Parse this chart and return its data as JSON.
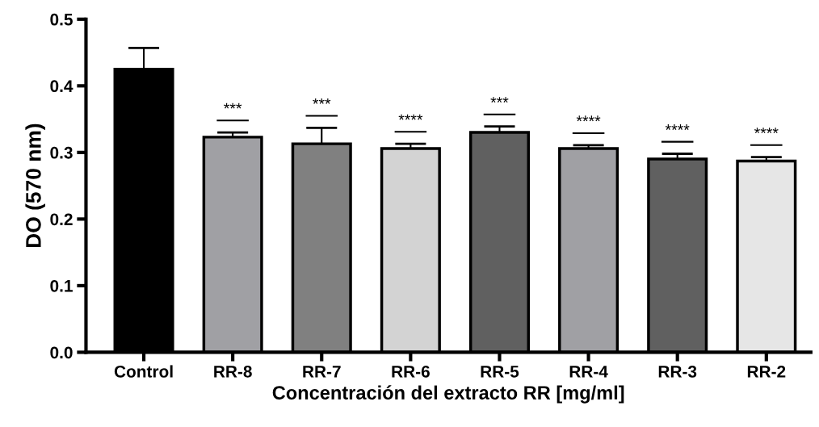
{
  "chart_data": {
    "type": "bar",
    "xlabel": "Concentración del extracto RR [mg/ml]",
    "ylabel": "DO (570 nm)",
    "categories": [
      "Control",
      "RR-8",
      "RR-7",
      "RR-6",
      "RR-5",
      "RR-4",
      "RR-3",
      "RR-2"
    ],
    "values": [
      0.425,
      0.323,
      0.313,
      0.306,
      0.33,
      0.306,
      0.29,
      0.287
    ],
    "errors": [
      0.032,
      0.007,
      0.024,
      0.007,
      0.009,
      0.005,
      0.008,
      0.006
    ],
    "colors": [
      "#000000",
      "#a0a0a4",
      "#808080",
      "#d3d3d3",
      "#606060",
      "#a0a0a4",
      "#606060",
      "#e6e6e6"
    ],
    "ylim": [
      0,
      0.5
    ],
    "yticks": [
      {
        "value": 0,
        "label": "0.0"
      },
      0.1,
      0.2,
      0.3,
      0.4,
      0.5
    ],
    "grid": false,
    "legend": false,
    "annotations": [
      "***",
      "***",
      "****",
      "***",
      "****",
      "****",
      "****"
    ]
  }
}
